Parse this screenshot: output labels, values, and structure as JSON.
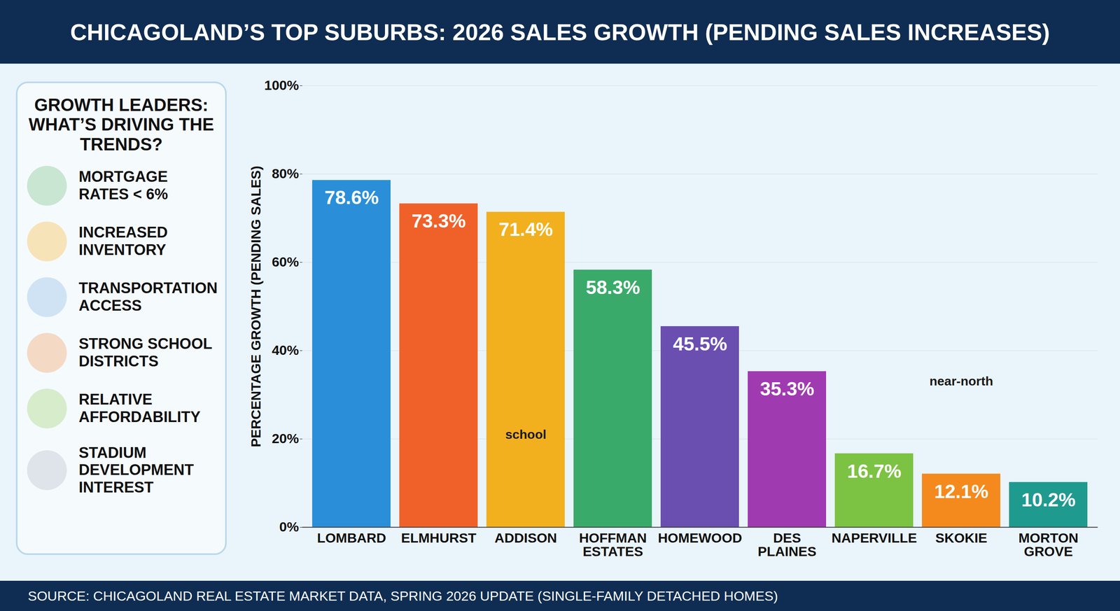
{
  "chart_data": {
    "type": "bar",
    "title": "CHICAGOLAND’S TOP SUBURBS: 2026 SALES GROWTH (PENDING SALES INCREASES)",
    "ylabel": "PERCENTAGE GROWTH (PENDING SALES)",
    "categories": [
      "LOMBARD",
      "ELMHURST",
      "ADDISON",
      "HOFFMAN ESTATES",
      "HOMEWOOD",
      "DES PLAINES",
      "NAPERVILLE",
      "SKOKIE",
      "MORTON GROVE"
    ],
    "values": [
      78.6,
      73.3,
      71.4,
      58.3,
      45.5,
      35.3,
      16.7,
      12.1,
      10.2
    ],
    "value_labels": [
      "78.6%",
      "73.3%",
      "71.4%",
      "58.3%",
      "45.5%",
      "35.3%",
      "16.7%",
      "12.1%",
      "10.2%"
    ],
    "colors": [
      "#2a8fd8",
      "#f0612a",
      "#f2b01e",
      "#3aaa6a",
      "#6a4fb0",
      "#a03ab0",
      "#7cc243",
      "#f48a1e",
      "#1f9a8f"
    ],
    "ylim": [
      0,
      100
    ],
    "yticks": [
      {
        "value": 0,
        "label": "0%"
      },
      {
        "value": 20,
        "label": "20%"
      },
      {
        "value": 40,
        "label": "40%"
      },
      {
        "value": 60,
        "label": "60%"
      },
      {
        "value": 80,
        "label": "80%"
      },
      {
        "value": 100,
        "label": "100%"
      }
    ],
    "grid": true,
    "data_labels": true,
    "annotations": [
      {
        "text": "school",
        "x": "ADDISON",
        "y": 21
      },
      {
        "text": "near-north",
        "x": "SKOKIE",
        "y": 33
      }
    ],
    "sidebar": {
      "title": "GROWTH LEADERS: WHAT’S DRIVING THE TRENDS?",
      "items": [
        "MORTGAGE RATES < 6%",
        "INCREASED INVENTORY",
        "TRANSPORTATION ACCESS",
        "STRONG SCHOOL DISTRICTS",
        "RELATIVE AFFORDABILITY",
        "STADIUM DEVELOPMENT INTEREST"
      ]
    },
    "source": "SOURCE: CHICAGOLAND REAL ESTATE MARKET DATA, SPRING 2026 UPDATE (SINGLE-FAMILY DETACHED HOMES)"
  }
}
